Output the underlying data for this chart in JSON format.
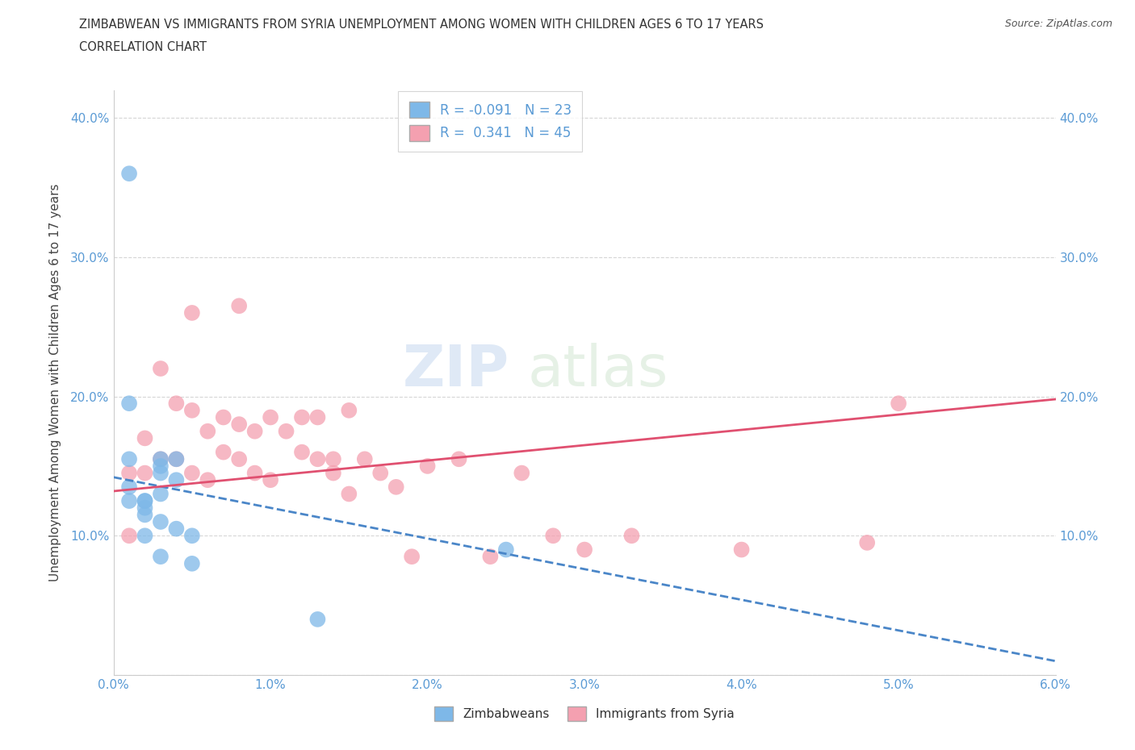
{
  "title_line1": "ZIMBABWEAN VS IMMIGRANTS FROM SYRIA UNEMPLOYMENT AMONG WOMEN WITH CHILDREN AGES 6 TO 17 YEARS",
  "title_line2": "CORRELATION CHART",
  "source": "Source: ZipAtlas.com",
  "ylabel": "Unemployment Among Women with Children Ages 6 to 17 years",
  "xlim": [
    0.0,
    0.06
  ],
  "ylim": [
    0.0,
    0.42
  ],
  "xticks": [
    0.0,
    0.01,
    0.02,
    0.03,
    0.04,
    0.05,
    0.06
  ],
  "xticklabels": [
    "0.0%",
    "1.0%",
    "2.0%",
    "3.0%",
    "4.0%",
    "5.0%",
    "6.0%"
  ],
  "yticks": [
    0.0,
    0.1,
    0.2,
    0.3,
    0.4
  ],
  "yticklabels": [
    "",
    "10.0%",
    "20.0%",
    "30.0%",
    "40.0%"
  ],
  "grid_color": "#cccccc",
  "background_color": "#ffffff",
  "zimbabwean_color": "#7eb8e8",
  "syria_color": "#f4a0b0",
  "zimbabwean_line_color": "#4a86c8",
  "syria_line_color": "#e05070",
  "legend_R_zimbabwean": "-0.091",
  "legend_N_zimbabwean": "23",
  "legend_R_syria": "0.341",
  "legend_N_syria": "45",
  "watermark_zip": "ZIP",
  "watermark_atlas": "atlas",
  "zimbabwean_x": [
    0.001,
    0.001,
    0.001,
    0.001,
    0.001,
    0.002,
    0.002,
    0.002,
    0.002,
    0.002,
    0.003,
    0.003,
    0.003,
    0.003,
    0.003,
    0.003,
    0.004,
    0.004,
    0.004,
    0.005,
    0.005,
    0.025,
    0.013
  ],
  "zimbabwean_y": [
    0.36,
    0.195,
    0.155,
    0.135,
    0.125,
    0.125,
    0.125,
    0.12,
    0.115,
    0.1,
    0.155,
    0.15,
    0.145,
    0.13,
    0.11,
    0.085,
    0.155,
    0.14,
    0.105,
    0.1,
    0.08,
    0.09,
    0.04
  ],
  "syria_x": [
    0.001,
    0.001,
    0.002,
    0.002,
    0.003,
    0.003,
    0.004,
    0.004,
    0.005,
    0.005,
    0.006,
    0.006,
    0.007,
    0.007,
    0.008,
    0.008,
    0.009,
    0.009,
    0.01,
    0.01,
    0.011,
    0.012,
    0.012,
    0.013,
    0.013,
    0.014,
    0.014,
    0.015,
    0.015,
    0.016,
    0.017,
    0.018,
    0.019,
    0.02,
    0.022,
    0.024,
    0.026,
    0.028,
    0.03,
    0.033,
    0.04,
    0.048,
    0.05,
    0.005,
    0.008
  ],
  "syria_y": [
    0.145,
    0.1,
    0.17,
    0.145,
    0.22,
    0.155,
    0.195,
    0.155,
    0.19,
    0.145,
    0.175,
    0.14,
    0.185,
    0.16,
    0.18,
    0.155,
    0.175,
    0.145,
    0.185,
    0.14,
    0.175,
    0.185,
    0.16,
    0.185,
    0.155,
    0.155,
    0.145,
    0.19,
    0.13,
    0.155,
    0.145,
    0.135,
    0.085,
    0.15,
    0.155,
    0.085,
    0.145,
    0.1,
    0.09,
    0.1,
    0.09,
    0.095,
    0.195,
    0.26,
    0.265
  ],
  "zim_line_x0": 0.0,
  "zim_line_y0": 0.142,
  "zim_line_x1": 0.06,
  "zim_line_y1": 0.01,
  "syr_line_x0": 0.0,
  "syr_line_y0": 0.132,
  "syr_line_x1": 0.06,
  "syr_line_y1": 0.198
}
